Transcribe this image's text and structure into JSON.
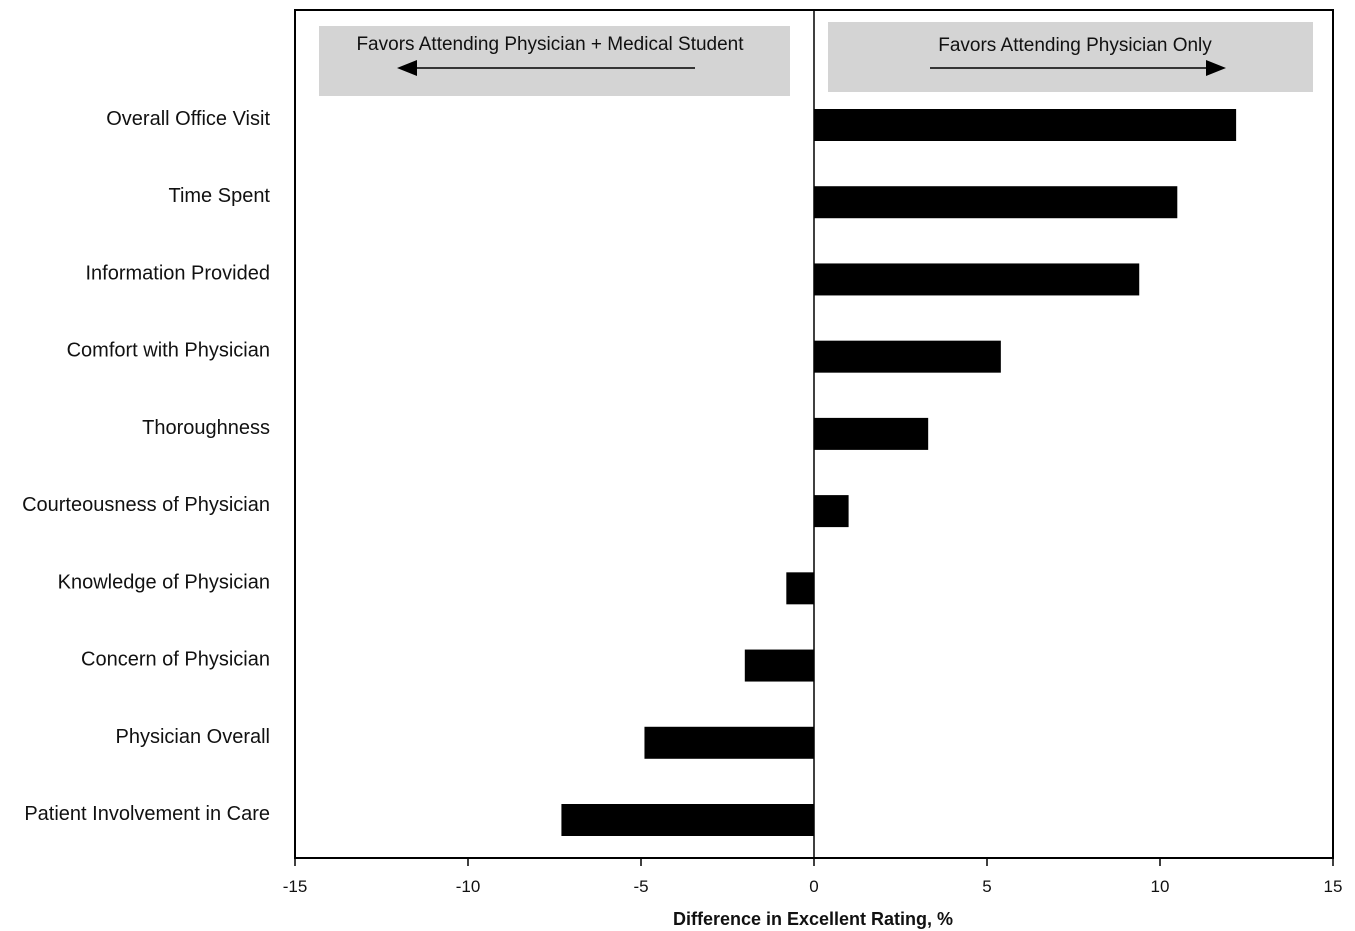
{
  "chart_data": {
    "type": "bar",
    "orientation": "horizontal",
    "title": "",
    "xlabel": "Difference in Excellent Rating, %",
    "ylabel": "",
    "xlim": [
      -15,
      15
    ],
    "xticks": [
      -15,
      -10,
      -5,
      0,
      5,
      10,
      15
    ],
    "xtick_labels": [
      "-15",
      "-10",
      "-5",
      "0",
      "5",
      "10",
      "15"
    ],
    "grid": false,
    "categories": [
      "Overall Office Visit",
      "Time Spent",
      "Information Provided",
      "Comfort with Physician",
      "Thoroughness",
      "Courteousness of Physician",
      "Knowledge of Physician",
      "Concern of Physician",
      "Physician Overall",
      "Patient Involvement in Care"
    ],
    "values": [
      12.2,
      10.5,
      9.4,
      5.4,
      3.3,
      1.0,
      -0.8,
      -2.0,
      -4.9,
      -7.3
    ],
    "bar_color": "#000000",
    "annotations": [
      {
        "text": "Favors Attending Physician + Medical Student",
        "direction": "left"
      },
      {
        "text": "Favors Attending Physician Only",
        "direction": "right"
      }
    ],
    "annotation_background": "#d4d4d4"
  }
}
